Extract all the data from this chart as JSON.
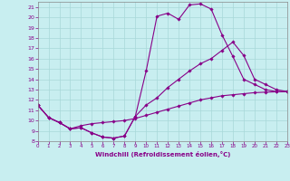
{
  "xlabel": "Windchill (Refroidissement éolien,°C)",
  "bg_color": "#c8eef0",
  "line_color": "#880088",
  "grid_color": "#a8d8d8",
  "xlim": [
    0,
    23
  ],
  "ylim": [
    8,
    21.5
  ],
  "yticks": [
    8,
    9,
    10,
    11,
    12,
    13,
    14,
    15,
    16,
    17,
    18,
    19,
    20,
    21
  ],
  "xticks": [
    0,
    1,
    2,
    3,
    4,
    5,
    6,
    7,
    8,
    9,
    10,
    11,
    12,
    13,
    14,
    15,
    16,
    17,
    18,
    19,
    20,
    21,
    22,
    23
  ],
  "line1_x": [
    0,
    1,
    2,
    3,
    4,
    5,
    6,
    7,
    8,
    9,
    10,
    11,
    12,
    13,
    14,
    15,
    16,
    17,
    18,
    19,
    20,
    21,
    22,
    23
  ],
  "line1_y": [
    11.5,
    10.3,
    9.8,
    9.2,
    9.3,
    8.8,
    8.4,
    8.3,
    8.5,
    10.4,
    14.8,
    20.1,
    20.4,
    19.8,
    21.2,
    21.3,
    20.8,
    18.3,
    16.2,
    14.0,
    13.5,
    13.0,
    12.8,
    12.8
  ],
  "line2_x": [
    0,
    1,
    2,
    3,
    4,
    5,
    6,
    7,
    8,
    9,
    10,
    11,
    12,
    13,
    14,
    15,
    16,
    17,
    18,
    19,
    20,
    21,
    22,
    23
  ],
  "line2_y": [
    11.5,
    10.3,
    9.8,
    9.2,
    9.3,
    8.8,
    8.4,
    8.3,
    8.5,
    10.4,
    11.5,
    12.2,
    13.2,
    14.0,
    14.8,
    15.5,
    16.0,
    16.8,
    17.6,
    16.3,
    14.0,
    13.5,
    13.0,
    12.8
  ],
  "line3_x": [
    0,
    1,
    2,
    3,
    4,
    5,
    6,
    7,
    8,
    9,
    10,
    11,
    12,
    13,
    14,
    15,
    16,
    17,
    18,
    19,
    20,
    21,
    22,
    23
  ],
  "line3_y": [
    11.5,
    10.3,
    9.8,
    9.2,
    9.5,
    9.7,
    9.8,
    9.9,
    10.0,
    10.2,
    10.5,
    10.8,
    11.1,
    11.4,
    11.7,
    12.0,
    12.2,
    12.4,
    12.5,
    12.6,
    12.7,
    12.75,
    12.78,
    12.8
  ]
}
